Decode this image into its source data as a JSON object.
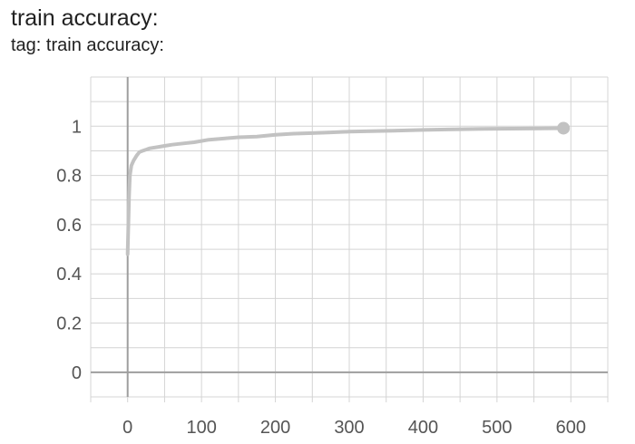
{
  "header": {
    "title": "train accuracy:",
    "tag": "tag: train accuracy:"
  },
  "colors": {
    "series": "#c2c2c2",
    "grid": "#d4d4d4",
    "axis": "#9e9e9e"
  },
  "chart_data": {
    "type": "line",
    "title": "train accuracy:",
    "subtitle": "tag: train accuracy:",
    "xlabel": "",
    "ylabel": "",
    "xlim": [
      -50,
      650
    ],
    "ylim": [
      -0.1,
      1.2
    ],
    "x_ticks": [
      0,
      100,
      200,
      300,
      400,
      500,
      600
    ],
    "x_tick_labels": [
      "0",
      "100",
      "200",
      "300",
      "400",
      "500",
      "600"
    ],
    "y_ticks": [
      0,
      0.2,
      0.4,
      0.6,
      0.8,
      1
    ],
    "y_tick_labels": [
      "0",
      "0.2",
      "0.4",
      "0.6",
      "0.8",
      "1"
    ],
    "grid": true,
    "series": [
      {
        "x": [
          0,
          1,
          2,
          3,
          5,
          8,
          12,
          16,
          20,
          25,
          30,
          40,
          50,
          60,
          75,
          90,
          110,
          130,
          150,
          175,
          200,
          225,
          250,
          275,
          300,
          330,
          360,
          400,
          440,
          480,
          520,
          560,
          590
        ],
        "y": [
          0.48,
          0.6,
          0.72,
          0.8,
          0.84,
          0.86,
          0.88,
          0.895,
          0.9,
          0.905,
          0.91,
          0.915,
          0.92,
          0.925,
          0.93,
          0.935,
          0.945,
          0.95,
          0.955,
          0.958,
          0.965,
          0.97,
          0.972,
          0.975,
          0.978,
          0.98,
          0.982,
          0.985,
          0.987,
          0.989,
          0.99,
          0.991,
          0.992
        ]
      }
    ],
    "last_point": [
      590,
      0.992
    ]
  }
}
